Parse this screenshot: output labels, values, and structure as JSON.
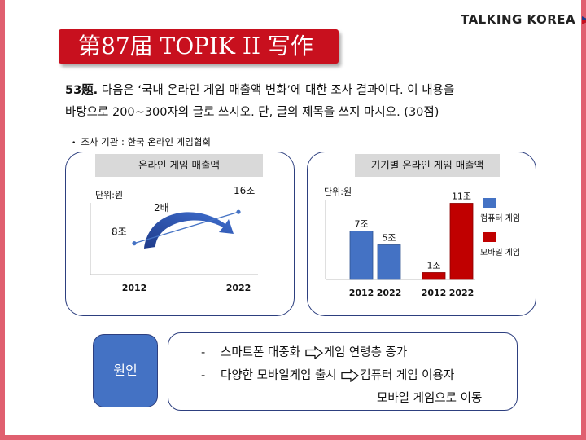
{
  "brand": {
    "name": "TALKING KOREA"
  },
  "title": "第87届 TOPIK II 写作",
  "question": {
    "number": "53题.",
    "text_line1": " 다음은 ‘국내 온라인 게임 매출액 변화’에 대한 조사 결과이다. 이 내용을",
    "text_line2": "바탕으로 200~300자의 글로 쓰시오. 단, 글의 제목을 쓰지 마시오. (30점)"
  },
  "source": "조사 기관 : 한국 온라인 게임협회",
  "chart_data": [
    {
      "type": "line",
      "title": "온라인 게임 매출액",
      "unit_label": "단위:원",
      "x": [
        "2012",
        "2022"
      ],
      "series": [
        {
          "values": [
            8,
            16
          ],
          "labels": [
            "8조",
            "16조"
          ]
        }
      ],
      "annotation": "2배",
      "ylim": [
        0,
        20
      ]
    },
    {
      "type": "bar",
      "title": "기기별 온라인 게임 매출액",
      "unit_label": "단위:원",
      "categories": [
        "2012",
        "2022"
      ],
      "series": [
        {
          "name": "컴퓨터 게임",
          "values": [
            7,
            5
          ],
          "labels": [
            "7조",
            "5조"
          ],
          "color": "#4472c4"
        },
        {
          "name": "모바일 게임",
          "values": [
            1,
            11
          ],
          "labels": [
            "1조",
            "11조"
          ],
          "color": "#c00000"
        }
      ],
      "ylim": [
        0,
        12
      ],
      "legend": "right"
    }
  ],
  "cause": {
    "label": "원인",
    "items": [
      {
        "dash": "-",
        "before": "스마트폰 대중화",
        "after": "게임 연령층 증가"
      },
      {
        "dash": "-",
        "before": "다양한 모바일게임 출시",
        "after": "컴퓨터 게임 이용자",
        "continuation": "모바일 게임으로 이동"
      }
    ]
  },
  "colors": {
    "accent": "#c8101e",
    "frame": "#e06070",
    "panel_border": "#2d3f7f",
    "blue": "#4472c4",
    "red": "#c00000"
  }
}
